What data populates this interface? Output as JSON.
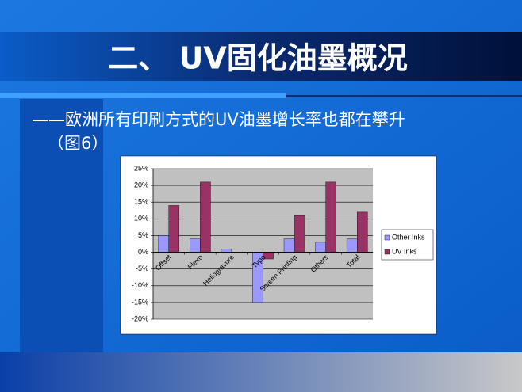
{
  "slide": {
    "title": "二、 UV固化油墨概况",
    "subtitle": [
      "——欧洲所有印刷方式的UV油墨增长率也都在攀升",
      "（图6）"
    ]
  },
  "chart_data": {
    "type": "bar",
    "categories": [
      "Offset",
      "Flexo",
      "Heliogravure",
      "Typo",
      "Screen Printing",
      "Others",
      "Total"
    ],
    "series": [
      {
        "name": "Other Inks",
        "color": "#9999ff",
        "values": [
          5,
          4,
          1,
          -15,
          4,
          3,
          4
        ]
      },
      {
        "name": "UV Inks",
        "color": "#993366",
        "values": [
          14,
          21,
          0,
          -2,
          11,
          21,
          12
        ]
      }
    ],
    "ylim": [
      -20,
      25
    ],
    "yticks": [
      {
        "value": -20,
        "label": "-20%"
      },
      {
        "value": -15,
        "label": "-15%"
      },
      {
        "value": -10,
        "label": "-10%"
      },
      {
        "value": -5,
        "label": "-5%"
      },
      {
        "value": 0,
        "label": "0%"
      },
      {
        "value": 5,
        "label": "5%"
      },
      {
        "value": 10,
        "label": "10%"
      },
      {
        "value": 15,
        "label": "15%"
      },
      {
        "value": 20,
        "label": "20%"
      },
      {
        "value": 25,
        "label": "25%"
      }
    ],
    "grid": true,
    "legend": "right"
  }
}
